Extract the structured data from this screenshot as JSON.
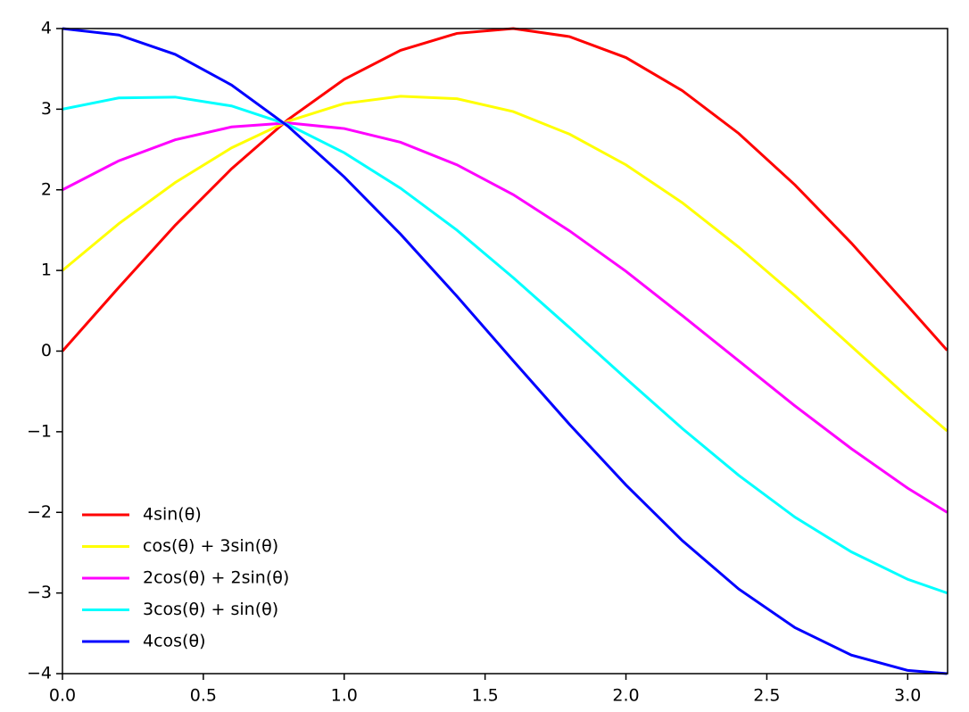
{
  "chart_data": {
    "type": "line",
    "x": [
      0,
      0.2,
      0.4,
      0.6,
      0.8,
      1.0,
      1.2,
      1.4,
      1.6,
      1.8,
      2.0,
      2.2,
      2.4,
      2.6,
      2.8,
      3.0,
      3.14
    ],
    "series": [
      {
        "name": "4sin(θ)",
        "color": "#ff0000",
        "values": [
          0,
          0.79,
          1.56,
          2.26,
          2.87,
          3.37,
          3.73,
          3.94,
          4.0,
          3.9,
          3.64,
          3.23,
          2.7,
          2.06,
          1.34,
          0.56,
          0.01
        ]
      },
      {
        "name": "cos(θ) + 3sin(θ)",
        "color": "#ffff00",
        "values": [
          1,
          1.58,
          2.09,
          2.52,
          2.85,
          3.07,
          3.16,
          3.13,
          2.97,
          2.69,
          2.31,
          1.84,
          1.29,
          0.69,
          0.06,
          -0.57,
          -0.99
        ]
      },
      {
        "name": "2cos(θ) + 2sin(θ)",
        "color": "#ff00ff",
        "values": [
          2,
          2.36,
          2.62,
          2.78,
          2.83,
          2.76,
          2.59,
          2.31,
          1.94,
          1.49,
          0.99,
          0.44,
          -0.12,
          -0.68,
          -1.21,
          -1.7,
          -2.0
        ]
      },
      {
        "name": "3cos(θ) + sin(θ)",
        "color": "#00ffff",
        "values": [
          3,
          3.14,
          3.15,
          3.04,
          2.81,
          2.46,
          2.02,
          1.5,
          0.91,
          0.29,
          -0.34,
          -0.96,
          -1.54,
          -2.06,
          -2.49,
          -2.83,
          -3.0
        ]
      },
      {
        "name": "4cos(θ)",
        "color": "#0000ff",
        "values": [
          4,
          3.92,
          3.68,
          3.3,
          2.79,
          2.16,
          1.45,
          0.68,
          -0.12,
          -0.91,
          -1.66,
          -2.35,
          -2.95,
          -3.43,
          -3.77,
          -3.96,
          -4.0
        ]
      }
    ],
    "xlim": [
      0,
      3.14159
    ],
    "ylim": [
      -4,
      4
    ],
    "xticks": [
      {
        "value": 0,
        "label": "0.0"
      },
      0.5,
      {
        "value": 1,
        "label": "1.0"
      },
      1.5,
      {
        "value": 2,
        "label": "2.0"
      },
      2.5,
      {
        "value": 3,
        "label": "3.0"
      }
    ],
    "yticks": [
      {
        "value": -4,
        "label": "−4"
      },
      {
        "value": -3,
        "label": "−3"
      },
      {
        "value": -2,
        "label": "−2"
      },
      {
        "value": -1,
        "label": "−1"
      },
      0,
      1,
      2,
      3,
      4
    ],
    "grid": false,
    "legend": "lower left"
  }
}
